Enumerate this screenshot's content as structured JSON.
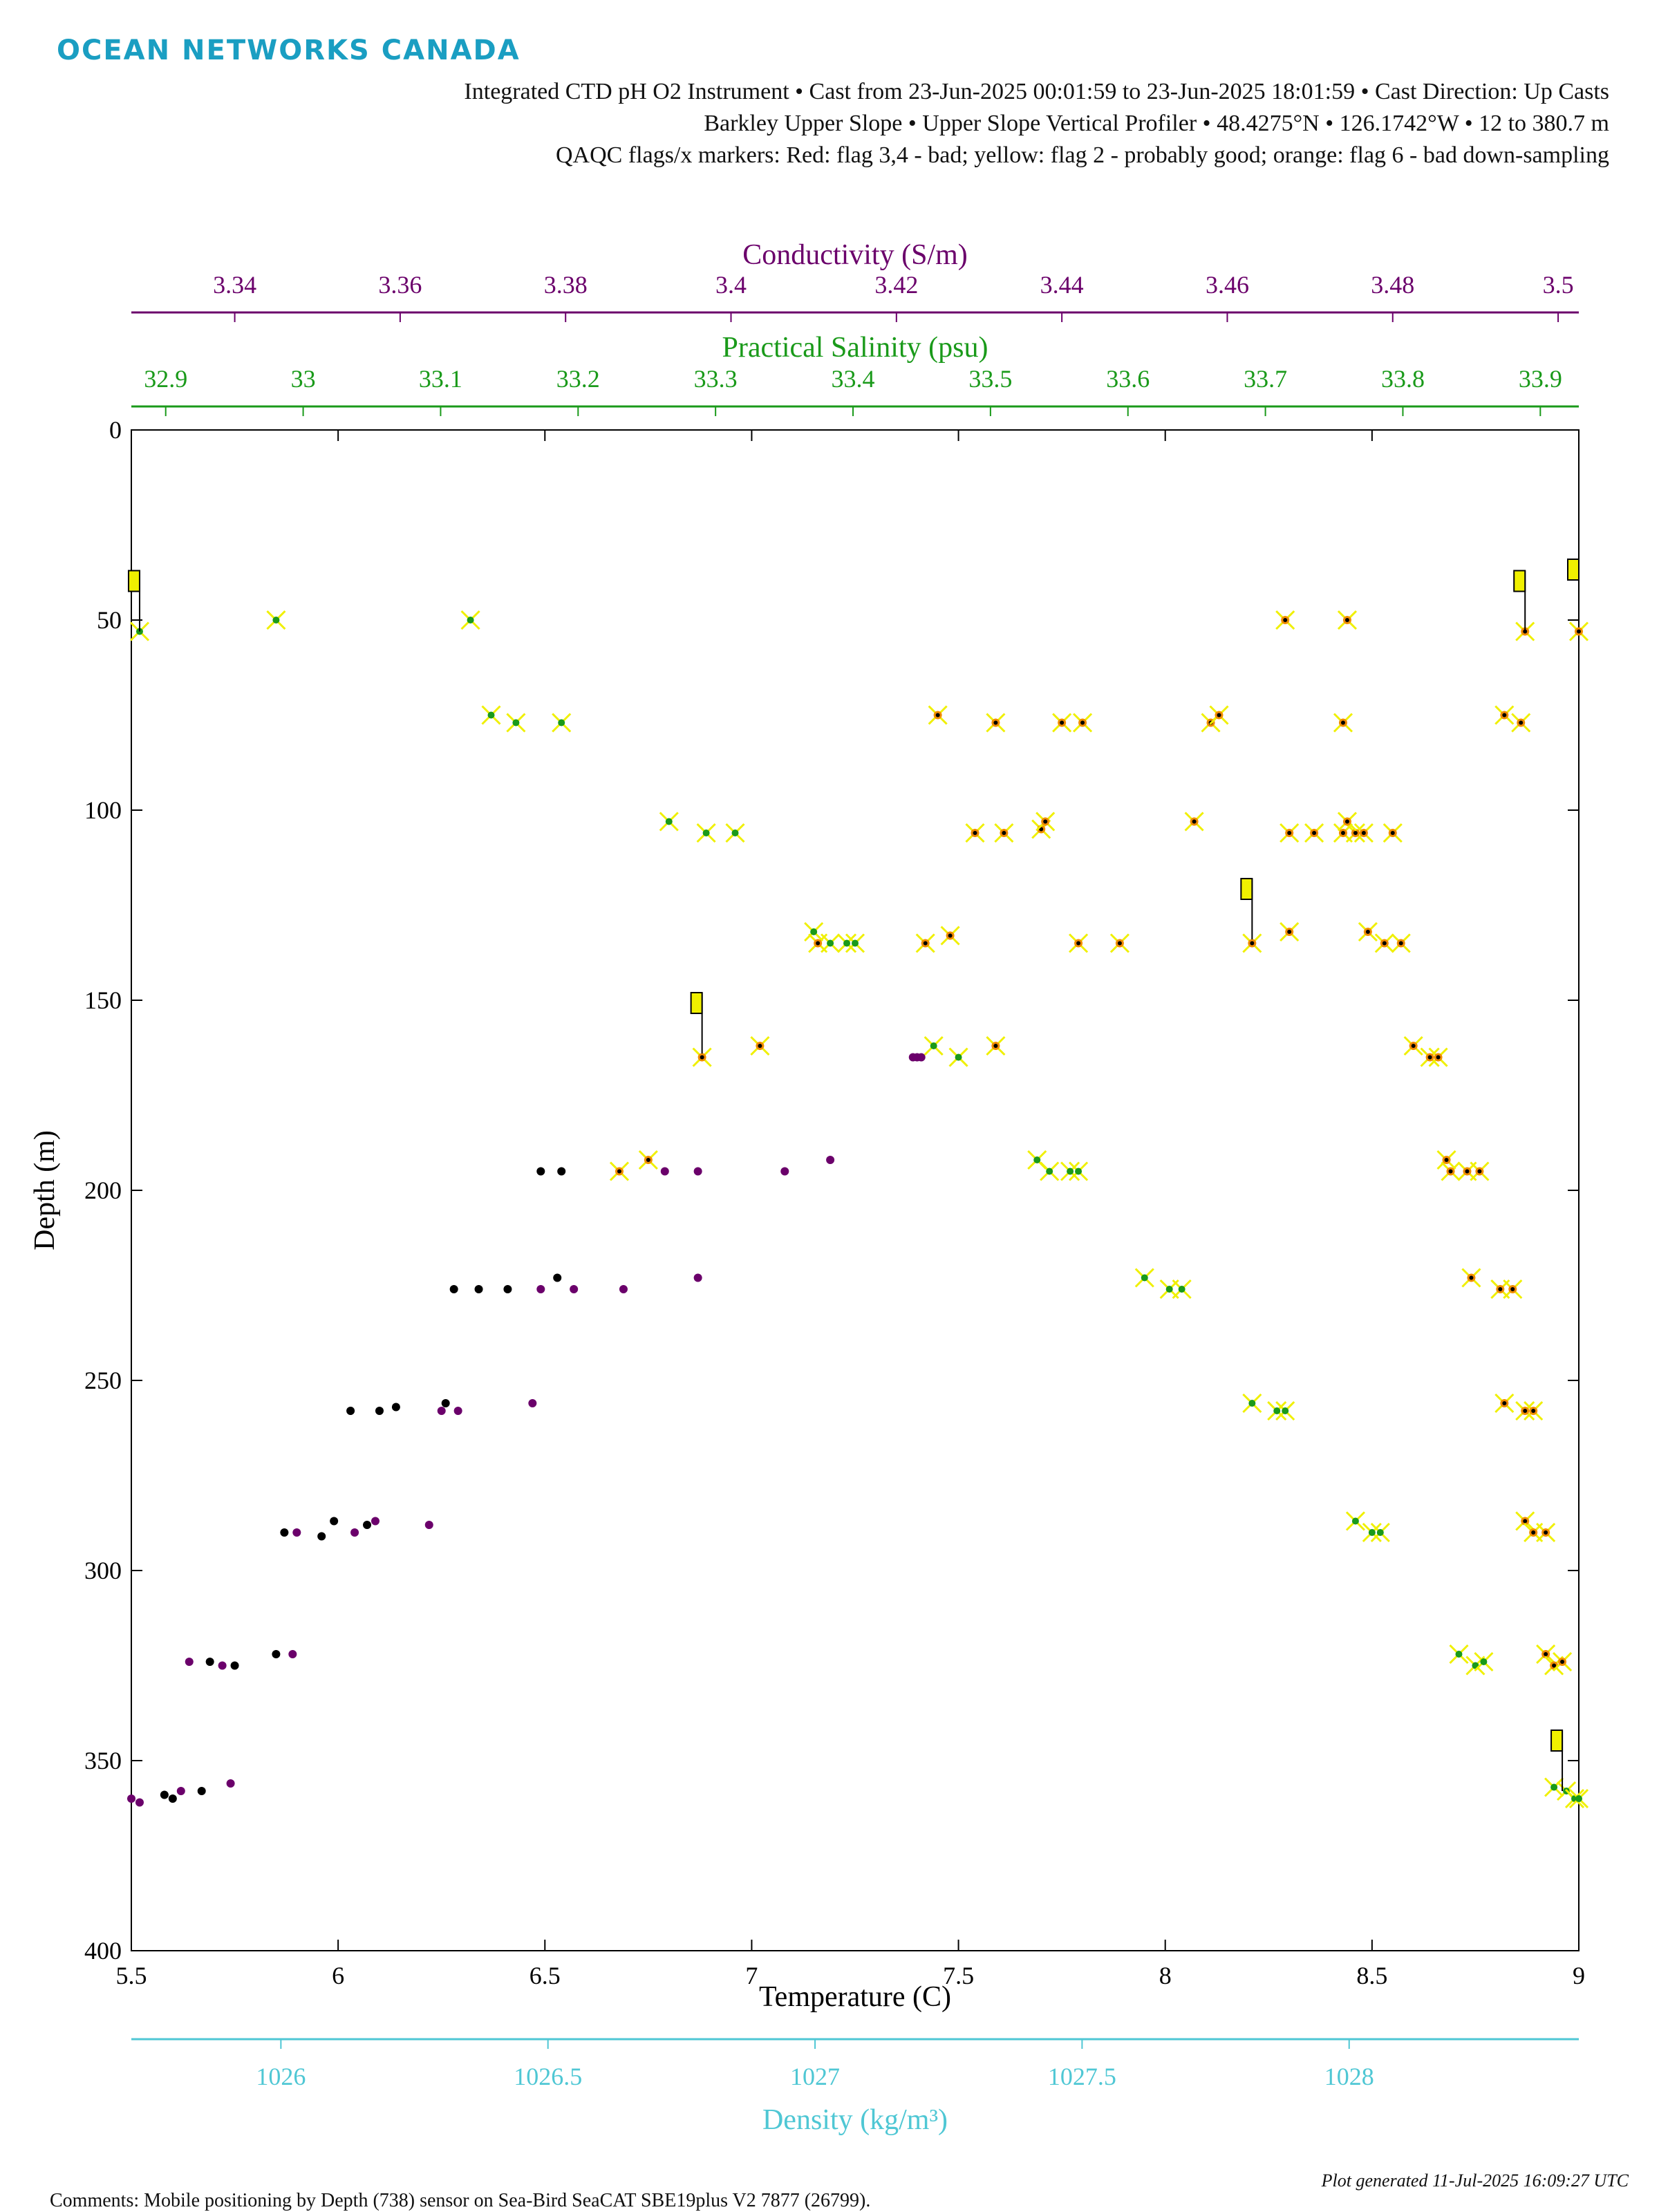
{
  "brand": {
    "logo_text": "OCEAN NETWORKS CANADA"
  },
  "header": {
    "line1": "Integrated CTD pH O2 Instrument • Cast from 23-Jun-2025 00:01:59 to 23-Jun-2025 18:01:59 • Cast Direction: Up Casts",
    "line2": "Barkley Upper Slope • Upper Slope Vertical Profiler • 48.4275°N • 126.1742°W • 12 to 380.7 m",
    "line3": "QAQC flags/x markers: Red: flag 3,4 - bad; yellow: flag 2 - probably good; orange: flag 6 - bad down-sampling"
  },
  "footer": {
    "comment": "Comments: Mobile positioning by Depth (738) sensor on Sea-Bird SeaCAT SBE19plus V2 7877 (26799).",
    "generated": "Plot generated 11-Jul-2025 16:09:27 UTC"
  },
  "colors": {
    "temperature": "#000000",
    "conductivity": "#6b006b",
    "salinity": "#1a9a1a",
    "density": "#4fc7d4",
    "flag_probably_good": "#f0f000",
    "flag_bad": "#e02020",
    "flag_bad_downsampling": "#f08c00"
  },
  "chart_data": {
    "type": "scatter",
    "y_axis": {
      "label": "Depth (m)",
      "range": [
        0,
        400
      ],
      "reversed": true,
      "ticks": [
        "0",
        "50",
        "100",
        "150",
        "200",
        "250",
        "300",
        "350",
        "400"
      ]
    },
    "x_axes": {
      "temperature": {
        "label": "Temperature (C)",
        "position": "bottom",
        "range": [
          5.5,
          9
        ],
        "ticks": [
          "5.5",
          "6",
          "6.5",
          "7",
          "7.5",
          "8",
          "8.5",
          "9"
        ]
      },
      "density": {
        "label": "Density (kg/m³)",
        "position": "bottom-offset",
        "range": [
          1025.72,
          1028.43
        ],
        "ticks": [
          "1026",
          "1026.5",
          "1027",
          "1027.5",
          "1028"
        ]
      },
      "conductivity": {
        "label": "Conductivity (S/m)",
        "position": "top",
        "range": [
          3.3275,
          3.5025
        ],
        "ticks": [
          "3.34",
          "3.36",
          "3.38",
          "3.4",
          "3.42",
          "3.44",
          "3.46",
          "3.48",
          "3.5"
        ]
      },
      "salinity": {
        "label": "Practical Salinity (psu)",
        "position": "top-offset",
        "range": [
          32.875,
          33.928
        ],
        "ticks": [
          "32.9",
          "33",
          "33.1",
          "33.2",
          "33.3",
          "33.4",
          "33.5",
          "33.6",
          "33.7",
          "33.8",
          "33.9"
        ]
      }
    },
    "series": [
      {
        "key": "temperature",
        "axis": "temperature",
        "points": [
          [
            6.49,
            195
          ],
          [
            6.54,
            195
          ],
          [
            6.28,
            226
          ],
          [
            6.34,
            226
          ],
          [
            6.41,
            226
          ],
          [
            6.53,
            223
          ],
          [
            6.03,
            258
          ],
          [
            6.1,
            258
          ],
          [
            6.14,
            257
          ],
          [
            6.26,
            256
          ],
          [
            5.87,
            290
          ],
          [
            5.96,
            291
          ],
          [
            5.99,
            287
          ],
          [
            6.07,
            288
          ],
          [
            5.69,
            324
          ],
          [
            5.75,
            325
          ],
          [
            5.85,
            322
          ],
          [
            5.58,
            359
          ],
          [
            5.6,
            360
          ],
          [
            5.67,
            358
          ]
        ]
      },
      {
        "key": "conductivity",
        "axis": "temperature",
        "points": [
          [
            7.39,
            165
          ],
          [
            7.4,
            165
          ],
          [
            7.41,
            165
          ],
          [
            6.79,
            195
          ],
          [
            6.87,
            195
          ],
          [
            7.08,
            195
          ],
          [
            7.19,
            192
          ],
          [
            6.49,
            226
          ],
          [
            6.57,
            226
          ],
          [
            6.69,
            226
          ],
          [
            6.87,
            223
          ],
          [
            6.25,
            258
          ],
          [
            6.29,
            258
          ],
          [
            6.47,
            256
          ],
          [
            5.9,
            290
          ],
          [
            6.04,
            290
          ],
          [
            6.09,
            287
          ],
          [
            6.22,
            288
          ],
          [
            5.64,
            324
          ],
          [
            5.72,
            325
          ],
          [
            5.89,
            322
          ],
          [
            5.5,
            360
          ],
          [
            5.52,
            361
          ],
          [
            5.62,
            358
          ],
          [
            5.74,
            356
          ]
        ]
      },
      {
        "key": "salinity",
        "axis": "temperature",
        "points": [
          [
            5.52,
            53
          ],
          [
            5.85,
            50
          ],
          [
            6.32,
            50
          ],
          [
            6.37,
            75
          ],
          [
            6.43,
            77
          ],
          [
            6.54,
            77
          ],
          [
            6.8,
            103
          ],
          [
            6.89,
            106
          ],
          [
            6.96,
            106
          ],
          [
            7.15,
            132
          ],
          [
            7.19,
            135
          ],
          [
            7.23,
            135
          ],
          [
            7.25,
            135
          ],
          [
            7.44,
            162
          ],
          [
            7.5,
            165
          ],
          [
            7.69,
            192
          ],
          [
            7.72,
            195
          ],
          [
            7.77,
            195
          ],
          [
            7.79,
            195
          ],
          [
            7.95,
            223
          ],
          [
            8.01,
            226
          ],
          [
            8.04,
            226
          ],
          [
            8.21,
            256
          ],
          [
            8.27,
            258
          ],
          [
            8.29,
            258
          ],
          [
            8.46,
            287
          ],
          [
            8.5,
            290
          ],
          [
            8.52,
            290
          ],
          [
            8.71,
            322
          ],
          [
            8.75,
            325
          ],
          [
            8.77,
            324
          ],
          [
            8.94,
            357
          ],
          [
            8.97,
            358
          ],
          [
            8.99,
            360
          ],
          [
            9.0,
            360
          ]
        ]
      },
      {
        "key": "density",
        "axis": "temperature",
        "points": [
          [
            8.29,
            50
          ],
          [
            8.44,
            50
          ],
          [
            8.87,
            53
          ],
          [
            9.0,
            53
          ],
          [
            7.45,
            75
          ],
          [
            7.59,
            77
          ],
          [
            7.75,
            77
          ],
          [
            7.8,
            77
          ],
          [
            8.11,
            77
          ],
          [
            8.13,
            75
          ],
          [
            8.43,
            77
          ],
          [
            8.82,
            75
          ],
          [
            8.86,
            77
          ],
          [
            7.54,
            106
          ],
          [
            7.61,
            106
          ],
          [
            7.7,
            105
          ],
          [
            7.71,
            103
          ],
          [
            8.07,
            103
          ],
          [
            8.3,
            106
          ],
          [
            8.36,
            106
          ],
          [
            8.43,
            106
          ],
          [
            8.46,
            106
          ],
          [
            8.48,
            106
          ],
          [
            8.44,
            103
          ],
          [
            8.55,
            106
          ],
          [
            7.16,
            135
          ],
          [
            7.42,
            135
          ],
          [
            7.48,
            133
          ],
          [
            7.79,
            135
          ],
          [
            7.89,
            135
          ],
          [
            8.21,
            135
          ],
          [
            8.3,
            132
          ],
          [
            8.49,
            132
          ],
          [
            8.53,
            135
          ],
          [
            8.57,
            135
          ],
          [
            6.88,
            165
          ],
          [
            7.02,
            162
          ],
          [
            7.59,
            162
          ],
          [
            8.6,
            162
          ],
          [
            8.64,
            165
          ],
          [
            8.66,
            165
          ],
          [
            6.68,
            195
          ],
          [
            6.75,
            192
          ],
          [
            8.68,
            192
          ],
          [
            8.69,
            195
          ],
          [
            8.73,
            195
          ],
          [
            8.76,
            195
          ],
          [
            8.74,
            223
          ],
          [
            8.81,
            226
          ],
          [
            8.84,
            226
          ],
          [
            8.82,
            256
          ],
          [
            8.87,
            258
          ],
          [
            8.89,
            258
          ],
          [
            8.87,
            287
          ],
          [
            8.89,
            290
          ],
          [
            8.92,
            290
          ],
          [
            8.92,
            322
          ],
          [
            8.94,
            325
          ],
          [
            8.96,
            324
          ]
        ]
      }
    ],
    "qaqc_flags": [
      {
        "flag": 2,
        "temperature": 5.52,
        "depth": 53
      },
      {
        "flag": 2,
        "temperature": 6.88,
        "depth": 164
      },
      {
        "flag": 2,
        "temperature": 8.21,
        "depth": 134
      },
      {
        "flag": 2,
        "temperature": 8.87,
        "depth": 53
      },
      {
        "flag": 2,
        "temperature": 8.96,
        "depth": 358
      },
      {
        "flag": 2,
        "temperature": 9.0,
        "depth": 50
      }
    ]
  }
}
